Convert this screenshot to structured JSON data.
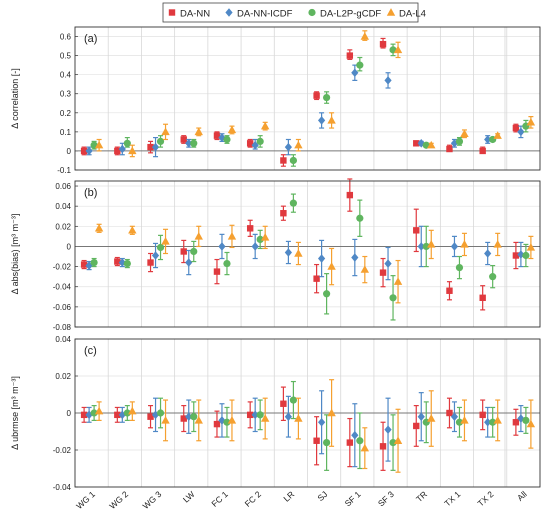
{
  "legend": {
    "placement": "top-center",
    "items": [
      {
        "label": "DA-NN",
        "color": "#e0393e",
        "marker": "square"
      },
      {
        "label": "DA-NN-ICDF",
        "color": "#4f88c6",
        "marker": "diamond"
      },
      {
        "label": "DA-L2P-gCDF",
        "color": "#5fb55f",
        "marker": "circle"
      },
      {
        "label": "DA-L4",
        "color": "#f5a030",
        "marker": "triangle"
      }
    ]
  },
  "chart_data": [
    {
      "type": "scatter",
      "panel_label": "(a)",
      "ylabel": "Δ correlation [-]",
      "ylim": [
        -0.1,
        0.65
      ],
      "yticks": [
        -0.1,
        0,
        0.1,
        0.2,
        0.3,
        0.4,
        0.5,
        0.6
      ],
      "ytick_labels": [
        "-0.1",
        "0",
        "0.1",
        "0.2",
        "0.3",
        "0.4",
        "0.5",
        "0.6"
      ],
      "categories": [
        "WG 1",
        "WG 2",
        "WG 3",
        "LW",
        "FC 1",
        "FC 2",
        "LR",
        "SJ",
        "SF 1",
        "SF 3",
        "TR",
        "TX 1",
        "TX 2",
        "All"
      ],
      "grid": true,
      "series": [
        {
          "name": "DA-NN",
          "values": [
            0.0,
            0.0,
            0.02,
            0.06,
            0.08,
            0.04,
            -0.05,
            0.29,
            0.5,
            0.56,
            0.04,
            0.01,
            0.0,
            0.12
          ],
          "low": [
            -0.02,
            -0.02,
            -0.01,
            0.04,
            0.06,
            0.02,
            -0.08,
            0.27,
            0.48,
            0.54,
            0.03,
            0.0,
            -0.01,
            0.1
          ],
          "high": [
            0.02,
            0.02,
            0.05,
            0.08,
            0.1,
            0.06,
            -0.02,
            0.31,
            0.53,
            0.59,
            0.05,
            0.03,
            0.02,
            0.14
          ]
        },
        {
          "name": "DA-NN-ICDF",
          "values": [
            0.0,
            0.01,
            0.02,
            0.04,
            0.07,
            0.03,
            0.02,
            0.16,
            0.41,
            0.37,
            0.04,
            0.04,
            0.06,
            0.1
          ],
          "low": [
            -0.02,
            -0.02,
            -0.03,
            0.02,
            0.05,
            0.01,
            -0.02,
            0.12,
            0.37,
            0.33,
            0.03,
            0.02,
            0.04,
            0.07
          ],
          "high": [
            0.02,
            0.04,
            0.07,
            0.06,
            0.09,
            0.06,
            0.06,
            0.2,
            0.45,
            0.41,
            0.05,
            0.06,
            0.08,
            0.13
          ]
        },
        {
          "name": "DA-L2P-gCDF",
          "values": [
            0.03,
            0.04,
            0.05,
            0.04,
            0.06,
            0.05,
            -0.05,
            0.28,
            0.45,
            0.53,
            0.03,
            0.05,
            0.06,
            0.13
          ],
          "low": [
            0.01,
            0.02,
            0.02,
            0.02,
            0.04,
            0.02,
            -0.08,
            0.25,
            0.42,
            0.5,
            0.02,
            0.03,
            0.05,
            0.1
          ],
          "high": [
            0.05,
            0.07,
            0.08,
            0.06,
            0.08,
            0.08,
            -0.02,
            0.31,
            0.49,
            0.56,
            0.04,
            0.07,
            0.07,
            0.16
          ]
        },
        {
          "name": "DA-L4",
          "values": [
            0.03,
            0.0,
            0.1,
            0.1,
            0.11,
            0.13,
            0.03,
            0.16,
            0.6,
            0.53,
            0.03,
            0.09,
            0.08,
            0.15
          ],
          "low": [
            0.0,
            -0.03,
            0.06,
            0.08,
            0.09,
            0.11,
            0.0,
            0.12,
            0.58,
            0.49,
            0.02,
            0.07,
            0.07,
            0.12
          ],
          "high": [
            0.06,
            0.03,
            0.14,
            0.12,
            0.13,
            0.15,
            0.06,
            0.2,
            0.63,
            0.57,
            0.04,
            0.11,
            0.09,
            0.18
          ]
        }
      ]
    },
    {
      "type": "scatter",
      "panel_label": "(b)",
      "ylabel": "Δ abs(bias) [m³ m⁻³]",
      "ylim": [
        -0.08,
        0.065
      ],
      "yticks": [
        -0.08,
        -0.06,
        -0.04,
        -0.02,
        0,
        0.02,
        0.04,
        0.06
      ],
      "ytick_labels": [
        "-0.08",
        "-0.06",
        "-0.04",
        "-0.02",
        "0",
        "0.02",
        "0.04",
        "0.06"
      ],
      "categories": [
        "WG 1",
        "WG 2",
        "WG 3",
        "LW",
        "FC 1",
        "FC 2",
        "LR",
        "SJ",
        "SF 1",
        "SF 3",
        "TR",
        "TX 1",
        "TX 2",
        "All"
      ],
      "grid": true,
      "series": [
        {
          "name": "DA-NN",
          "values": [
            -0.018,
            -0.015,
            -0.016,
            -0.005,
            -0.025,
            0.018,
            0.033,
            -0.032,
            0.051,
            -0.026,
            0.016,
            -0.044,
            -0.051,
            -0.009
          ],
          "low": [
            -0.022,
            -0.019,
            -0.025,
            -0.016,
            -0.037,
            0.01,
            0.026,
            -0.046,
            0.035,
            -0.04,
            -0.005,
            -0.053,
            -0.063,
            -0.022
          ],
          "high": [
            -0.014,
            -0.011,
            -0.007,
            0.006,
            -0.013,
            0.026,
            0.04,
            -0.018,
            0.067,
            -0.012,
            0.037,
            -0.035,
            -0.039,
            0.004
          ]
        },
        {
          "name": "DA-NN-ICDF",
          "values": [
            -0.019,
            -0.016,
            -0.009,
            -0.016,
            0.0,
            0.0,
            -0.006,
            -0.012,
            -0.011,
            -0.017,
            0.0,
            0.0,
            -0.007,
            -0.008
          ],
          "low": [
            -0.023,
            -0.02,
            -0.021,
            -0.028,
            -0.012,
            -0.012,
            -0.017,
            -0.03,
            -0.029,
            -0.033,
            -0.02,
            -0.01,
            -0.018,
            -0.02
          ],
          "high": [
            -0.015,
            -0.012,
            0.003,
            -0.004,
            0.012,
            0.012,
            0.005,
            0.006,
            0.007,
            -0.001,
            0.02,
            0.01,
            0.004,
            0.004
          ]
        },
        {
          "name": "DA-L2P-gCDF",
          "values": [
            -0.016,
            -0.017,
            -0.001,
            -0.005,
            -0.017,
            0.007,
            0.043,
            -0.047,
            0.028,
            -0.051,
            0.0,
            -0.021,
            -0.03,
            -0.009
          ],
          "low": [
            -0.02,
            -0.021,
            -0.013,
            -0.015,
            -0.028,
            -0.002,
            0.034,
            -0.067,
            0.01,
            -0.073,
            -0.02,
            -0.032,
            -0.041,
            -0.02
          ],
          "high": [
            -0.012,
            -0.013,
            0.011,
            0.005,
            -0.006,
            0.016,
            0.052,
            -0.027,
            0.046,
            -0.029,
            0.02,
            -0.01,
            -0.019,
            0.002
          ]
        },
        {
          "name": "DA-L4",
          "values": [
            0.018,
            0.016,
            0.005,
            0.01,
            0.01,
            0.009,
            -0.007,
            -0.02,
            -0.023,
            -0.035,
            0.002,
            0.002,
            0.002,
            -0.001
          ],
          "low": [
            0.014,
            0.012,
            -0.007,
            0.0,
            -0.001,
            -0.002,
            -0.018,
            -0.038,
            -0.036,
            -0.056,
            -0.012,
            -0.009,
            -0.009,
            -0.012
          ],
          "high": [
            0.022,
            0.02,
            0.017,
            0.02,
            0.021,
            0.02,
            0.004,
            -0.002,
            -0.01,
            -0.014,
            0.016,
            0.013,
            0.013,
            0.01
          ]
        }
      ]
    },
    {
      "type": "scatter",
      "panel_label": "(c)",
      "ylabel": "Δ ubrmse [m³ m⁻³]",
      "ylim": [
        -0.04,
        0.04
      ],
      "yticks": [
        -0.04,
        -0.02,
        0,
        0.02,
        0.04
      ],
      "ytick_labels": [
        "-0.04",
        "-0.02",
        "0",
        "0.02",
        "0.04"
      ],
      "categories": [
        "WG 1",
        "WG 2",
        "WG 3",
        "LW",
        "FC 1",
        "FC 2",
        "LR",
        "SJ",
        "SF 1",
        "SF 3",
        "TR",
        "TX 1",
        "TX 2",
        "All"
      ],
      "grid": true,
      "series": [
        {
          "name": "DA-NN",
          "values": [
            -0.001,
            -0.001,
            -0.002,
            -0.003,
            -0.006,
            -0.001,
            0.005,
            -0.015,
            -0.016,
            -0.018,
            -0.007,
            0.0,
            -0.001,
            -0.005
          ],
          "low": [
            -0.005,
            -0.005,
            -0.008,
            -0.01,
            -0.013,
            -0.008,
            -0.004,
            -0.028,
            -0.029,
            -0.031,
            -0.018,
            -0.008,
            -0.009,
            -0.012
          ],
          "high": [
            0.003,
            0.003,
            0.004,
            0.004,
            0.001,
            0.006,
            0.014,
            -0.002,
            -0.003,
            -0.005,
            0.004,
            0.008,
            0.007,
            0.002
          ]
        },
        {
          "name": "DA-NN-ICDF",
          "values": [
            -0.001,
            -0.001,
            -0.001,
            -0.002,
            -0.004,
            -0.001,
            -0.002,
            -0.005,
            -0.012,
            -0.009,
            -0.002,
            -0.002,
            -0.005,
            -0.003
          ],
          "low": [
            -0.005,
            -0.005,
            -0.01,
            -0.011,
            -0.013,
            -0.01,
            -0.013,
            -0.022,
            -0.029,
            -0.026,
            -0.015,
            -0.01,
            -0.013,
            -0.01
          ],
          "high": [
            0.003,
            0.003,
            0.008,
            0.007,
            0.005,
            0.008,
            0.009,
            0.012,
            0.005,
            0.008,
            0.011,
            0.006,
            0.003,
            0.004
          ]
        },
        {
          "name": "DA-L2P-gCDF",
          "values": [
            0.0,
            0.0,
            0.0,
            -0.002,
            -0.005,
            -0.001,
            0.007,
            -0.016,
            -0.015,
            -0.016,
            -0.005,
            -0.005,
            -0.005,
            -0.004
          ],
          "low": [
            -0.004,
            -0.004,
            -0.008,
            -0.01,
            -0.013,
            -0.009,
            -0.003,
            -0.031,
            -0.03,
            -0.031,
            -0.016,
            -0.013,
            -0.013,
            -0.011
          ],
          "high": [
            0.004,
            0.004,
            0.008,
            0.006,
            0.003,
            0.007,
            0.017,
            -0.001,
            0.0,
            -0.001,
            0.006,
            0.003,
            0.003,
            0.003
          ]
        },
        {
          "name": "DA-L4",
          "values": [
            0.001,
            0.001,
            -0.004,
            -0.004,
            -0.004,
            -0.003,
            -0.003,
            0.0,
            -0.019,
            -0.015,
            -0.003,
            -0.004,
            -0.004,
            -0.006
          ],
          "low": [
            -0.004,
            -0.004,
            -0.015,
            -0.015,
            -0.015,
            -0.014,
            -0.014,
            -0.018,
            -0.03,
            -0.032,
            -0.018,
            -0.015,
            -0.015,
            -0.019
          ],
          "high": [
            0.006,
            0.006,
            0.007,
            0.007,
            0.007,
            0.008,
            0.008,
            0.018,
            -0.008,
            0.002,
            0.012,
            0.007,
            0.007,
            0.007
          ]
        }
      ]
    }
  ]
}
